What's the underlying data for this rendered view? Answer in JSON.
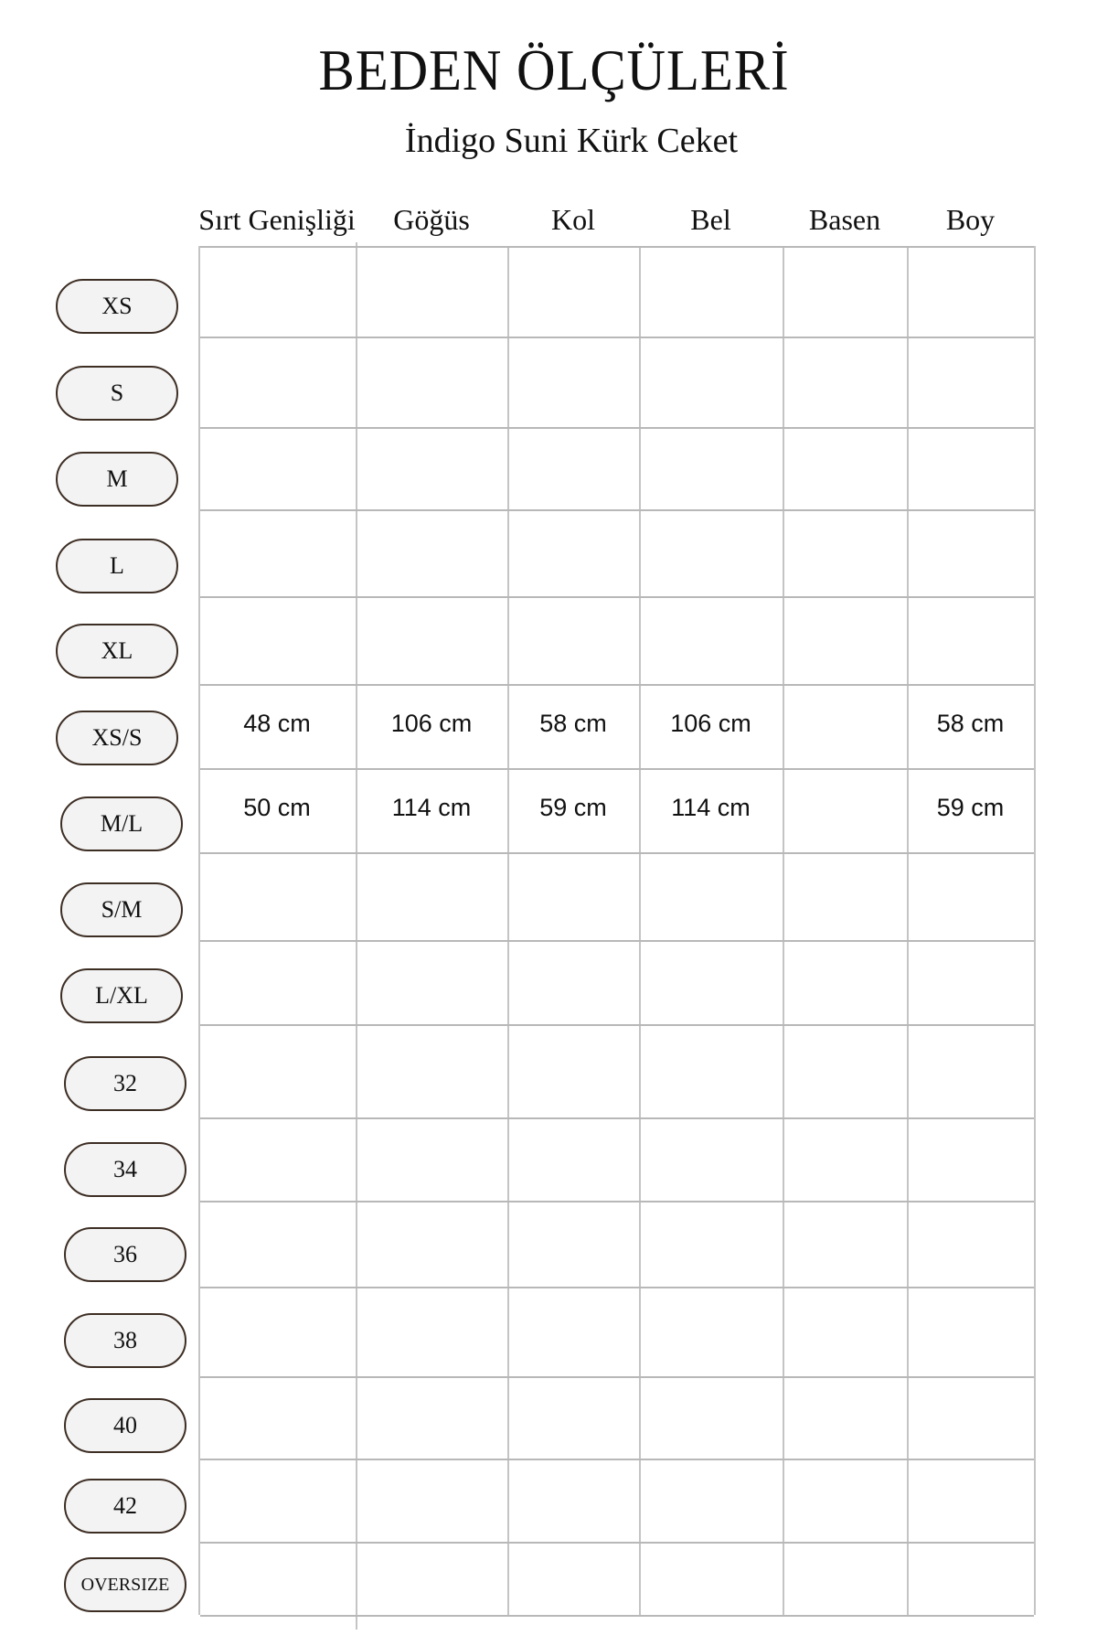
{
  "title": "BEDEN ÖLÇÜLERİ",
  "subtitle": "İndigo Suni Kürk Ceket",
  "columns": [
    "Sırt Genişliği",
    "Göğüs",
    "Kol",
    "Bel",
    "Basen",
    "Boy"
  ],
  "sizes": [
    "XS",
    "S",
    "M",
    "L",
    "XL",
    "XS/S",
    "M/L",
    "S/M",
    "L/XL",
    "32",
    "34",
    "36",
    "38",
    "40",
    "42",
    "OVERSIZE"
  ],
  "rows": {
    "XS/S": [
      "48 cm",
      "106 cm",
      "58 cm",
      "106 cm",
      "",
      "58 cm"
    ],
    "M/L": [
      "50 cm",
      "114 cm",
      "59 cm",
      "114 cm",
      "",
      "59 cm"
    ]
  }
}
